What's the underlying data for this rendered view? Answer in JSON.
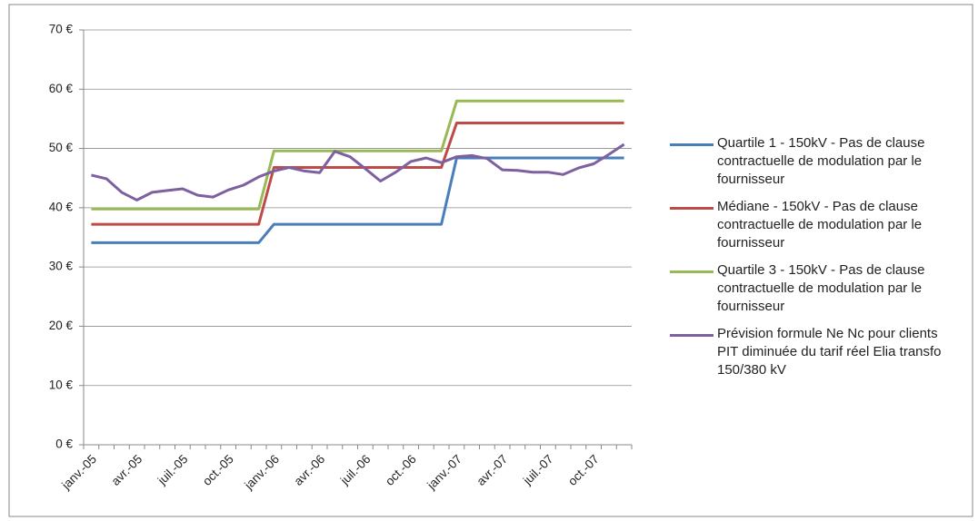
{
  "chart_data": {
    "type": "line",
    "categories": [
      "janv.-05",
      null,
      null,
      "avr.-05",
      null,
      null,
      "juil.-05",
      null,
      null,
      "oct.-05",
      null,
      null,
      "janv.-06",
      null,
      null,
      "avr.-06",
      null,
      null,
      "juil.-06",
      null,
      null,
      "oct.-06",
      null,
      null,
      "janv.-07",
      null,
      null,
      "avr.-07",
      null,
      null,
      "juil.-07",
      null,
      null,
      "oct.-07",
      null,
      null
    ],
    "series": [
      {
        "name": "Quartile 1 - 150kV - Pas de clause contractuelle de modulation par le fournisseur",
        "color": "#4a7ebb",
        "values": [
          34.1,
          34.1,
          34.1,
          34.1,
          34.1,
          34.1,
          34.1,
          34.1,
          34.1,
          34.1,
          34.1,
          34.1,
          37.2,
          37.2,
          37.2,
          37.2,
          37.2,
          37.2,
          37.2,
          37.2,
          37.2,
          37.2,
          37.2,
          37.2,
          48.4,
          48.4,
          48.4,
          48.4,
          48.4,
          48.4,
          48.4,
          48.4,
          48.4,
          48.4,
          48.4,
          48.4
        ]
      },
      {
        "name": "Médiane - 150kV - Pas de clause contractuelle de modulation par le fournisseur",
        "color": "#be4b48",
        "values": [
          37.2,
          37.2,
          37.2,
          37.2,
          37.2,
          37.2,
          37.2,
          37.2,
          37.2,
          37.2,
          37.2,
          37.2,
          46.8,
          46.8,
          46.8,
          46.8,
          46.8,
          46.8,
          46.8,
          46.8,
          46.8,
          46.8,
          46.8,
          46.8,
          54.3,
          54.3,
          54.3,
          54.3,
          54.3,
          54.3,
          54.3,
          54.3,
          54.3,
          54.3,
          54.3,
          54.3
        ]
      },
      {
        "name": "Quartile 3 - 150kV - Pas de clause contractuelle de modulation par le fournisseur",
        "color": "#98b954",
        "values": [
          39.8,
          39.8,
          39.8,
          39.8,
          39.8,
          39.8,
          39.8,
          39.8,
          39.8,
          39.8,
          39.8,
          39.8,
          49.6,
          49.6,
          49.6,
          49.6,
          49.6,
          49.6,
          49.6,
          49.6,
          49.6,
          49.6,
          49.6,
          49.6,
          58,
          58,
          58,
          58,
          58,
          58,
          58,
          58,
          58,
          58,
          58,
          58
        ]
      },
      {
        "name": "Prévision formule Ne Nc pour clients PIT diminuée du tarif réel Elia transfo 150/380 kV",
        "color": "#7d60a0",
        "values": [
          45.5,
          44.9,
          42.6,
          41.3,
          42.6,
          42.9,
          43.2,
          42.1,
          41.8,
          43.0,
          43.8,
          45.2,
          46.2,
          46.8,
          46.2,
          45.9,
          49.5,
          48.6,
          46.6,
          44.5,
          46.0,
          47.8,
          48.4,
          47.6,
          48.6,
          48.8,
          48.3,
          46.4,
          46.3,
          46.0,
          46.0,
          45.6,
          46.7,
          47.4,
          49.0,
          50.7
        ]
      }
    ],
    "ylim": [
      0,
      70
    ],
    "yticks": [
      {
        "value": 0,
        "label": "0 €"
      },
      {
        "value": 10,
        "label": "10 €"
      },
      {
        "value": 20,
        "label": "20 €"
      },
      {
        "value": 30,
        "label": "30 €"
      },
      {
        "value": 40,
        "label": "40 €"
      },
      {
        "value": 50,
        "label": "50 €"
      },
      {
        "value": 60,
        "label": "60 €"
      },
      {
        "value": 70,
        "label": "70 €"
      }
    ],
    "grid": true
  }
}
